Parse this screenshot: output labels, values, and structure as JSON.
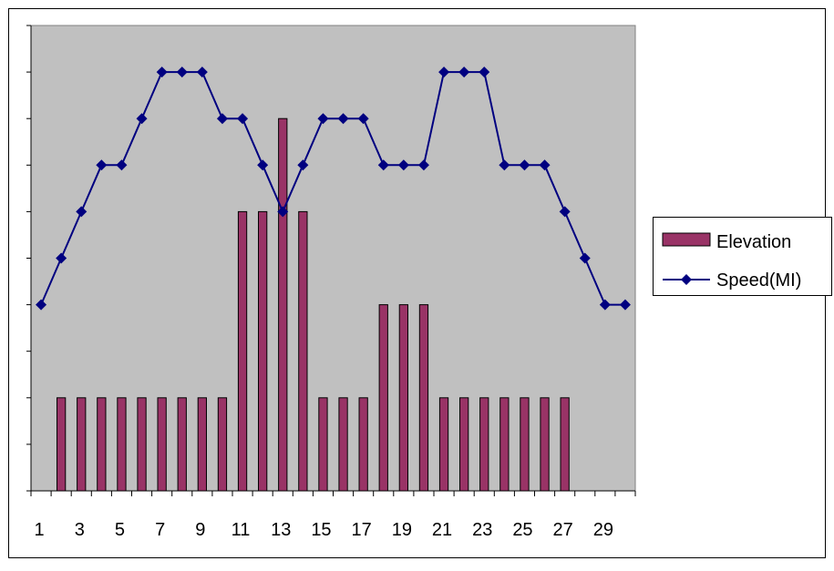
{
  "chart_data": {
    "type": "bar",
    "title": "",
    "xlabel": "",
    "ylabel": "",
    "categories": [
      1,
      2,
      3,
      4,
      5,
      6,
      7,
      8,
      9,
      10,
      11,
      12,
      13,
      14,
      15,
      16,
      17,
      18,
      19,
      20,
      21,
      22,
      23,
      24,
      25,
      26,
      27,
      28,
      29,
      30
    ],
    "x_tick_labels": [
      "1",
      "3",
      "5",
      "7",
      "9",
      "11",
      "13",
      "15",
      "17",
      "19",
      "21",
      "23",
      "25",
      "27",
      "29"
    ],
    "ylim": [
      0,
      10
    ],
    "y_tick_count": 10,
    "y_tick_labels_visible": false,
    "grid": false,
    "plot_background": "#c0c0c0",
    "legend_position": "right",
    "series": [
      {
        "name": "Elevation",
        "type": "bar",
        "color": "#993366",
        "values": [
          0,
          2,
          2,
          2,
          2,
          2,
          2,
          2,
          2,
          2,
          6,
          6,
          8,
          6,
          2,
          2,
          2,
          4,
          4,
          4,
          2,
          2,
          2,
          2,
          2,
          2,
          2,
          0,
          0,
          0
        ]
      },
      {
        "name": "Speed(MI)",
        "type": "line",
        "marker": "diamond",
        "color": "#000080",
        "values": [
          4,
          5,
          6,
          7,
          7,
          8,
          9,
          9,
          9,
          8,
          8,
          7,
          6,
          7,
          8,
          8,
          8,
          7,
          7,
          7,
          9,
          9,
          9,
          7,
          7,
          7,
          6,
          5,
          4,
          4
        ]
      }
    ]
  }
}
